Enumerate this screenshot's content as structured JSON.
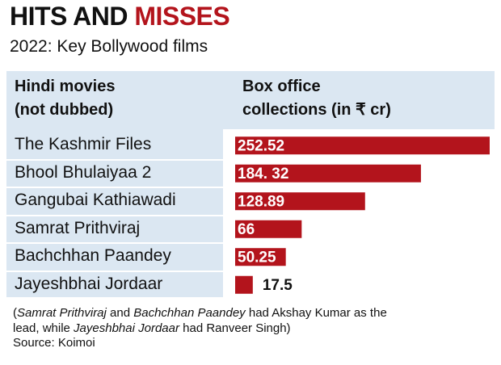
{
  "chart_data": {
    "type": "bar",
    "orientation": "horizontal",
    "title": [
      "HITS AND",
      "MISSES"
    ],
    "subtitle": "2022: Key Bollywood films",
    "category_header": [
      "Hindi movies",
      "(not dubbed)"
    ],
    "value_header": [
      "Box office",
      "collections (in ₹ cr)"
    ],
    "categories": [
      "The Kashmir Files",
      "Bhool Bhulaiyaa 2",
      "Gangubai Kathiawadi",
      "Samrat Prithviraj",
      "Bachchhan Paandey",
      "Jayeshbhai Jordaar"
    ],
    "values": [
      252.52,
      184.32,
      128.89,
      66,
      50.25,
      17.5
    ],
    "value_labels": [
      "252.52",
      "184. 32",
      "128.89",
      "66",
      "50.25",
      "17.5"
    ],
    "color": "#b3141c",
    "note": [
      {
        "text": "(",
        "italic": false
      },
      {
        "text": "Samrat Prithviraj",
        "italic": true
      },
      {
        "text": " and ",
        "italic": false
      },
      {
        "text": "Bachchhan Paandey",
        "italic": true
      },
      {
        "text": " had Akshay Kumar as the lead, while ",
        "italic": false
      },
      {
        "text": "Jayeshbhai Jordaar",
        "italic": true
      },
      {
        "text": " had Ranveer Singh)",
        "italic": false
      }
    ],
    "source": "Source: Koimoi"
  }
}
